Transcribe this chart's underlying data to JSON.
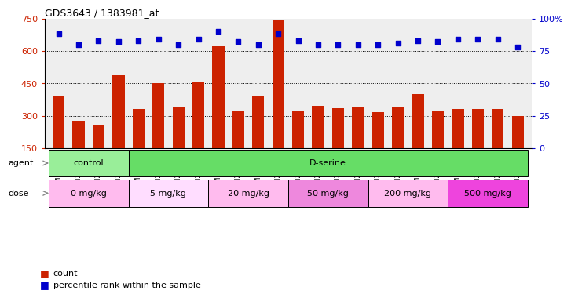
{
  "title": "GDS3643 / 1383981_at",
  "samples": [
    "GSM271362",
    "GSM271365",
    "GSM271367",
    "GSM271369",
    "GSM271372",
    "GSM271375",
    "GSM271377",
    "GSM271379",
    "GSM271382",
    "GSM271383",
    "GSM271384",
    "GSM271385",
    "GSM271386",
    "GSM271387",
    "GSM271388",
    "GSM271389",
    "GSM271390",
    "GSM271391",
    "GSM271392",
    "GSM271393",
    "GSM271394",
    "GSM271395",
    "GSM271396",
    "GSM271397"
  ],
  "counts": [
    390,
    278,
    260,
    490,
    330,
    450,
    340,
    455,
    620,
    320,
    390,
    740,
    320,
    345,
    335,
    340,
    315,
    340,
    400,
    320,
    330,
    330,
    330,
    300
  ],
  "percentiles": [
    88,
    80,
    83,
    82,
    83,
    84,
    80,
    84,
    90,
    82,
    80,
    88,
    83,
    80,
    80,
    80,
    80,
    81,
    83,
    82,
    84,
    84,
    84,
    78
  ],
  "bar_color": "#cc2200",
  "dot_color": "#0000cc",
  "ylim_left": [
    150,
    750
  ],
  "ylim_right": [
    0,
    100
  ],
  "yticks_left": [
    150,
    300,
    450,
    600,
    750
  ],
  "yticks_right": [
    0,
    25,
    50,
    75,
    100
  ],
  "grid_lines": [
    300,
    450,
    600
  ],
  "agent_groups": [
    {
      "label": "control",
      "start": 0,
      "end": 4,
      "color": "#99ee99"
    },
    {
      "label": "D-serine",
      "start": 4,
      "end": 24,
      "color": "#66dd66"
    }
  ],
  "dose_groups": [
    {
      "label": "0 mg/kg",
      "start": 0,
      "end": 4,
      "color": "#ffbbee"
    },
    {
      "label": "5 mg/kg",
      "start": 4,
      "end": 8,
      "color": "#ffddff"
    },
    {
      "label": "20 mg/kg",
      "start": 8,
      "end": 12,
      "color": "#ffbbee"
    },
    {
      "label": "50 mg/kg",
      "start": 12,
      "end": 16,
      "color": "#ee88dd"
    },
    {
      "label": "200 mg/kg",
      "start": 16,
      "end": 20,
      "color": "#ffbbee"
    },
    {
      "label": "500 mg/kg",
      "start": 20,
      "end": 24,
      "color": "#ee44dd"
    }
  ],
  "agent_row_label": "agent",
  "dose_row_label": "dose",
  "legend_count_label": "count",
  "legend_pct_label": "percentile rank within the sample",
  "bg_color": "#ffffff",
  "plot_bg_color": "#eeeeee",
  "tick_label_color_left": "#cc2200",
  "tick_label_color_right": "#0000cc"
}
